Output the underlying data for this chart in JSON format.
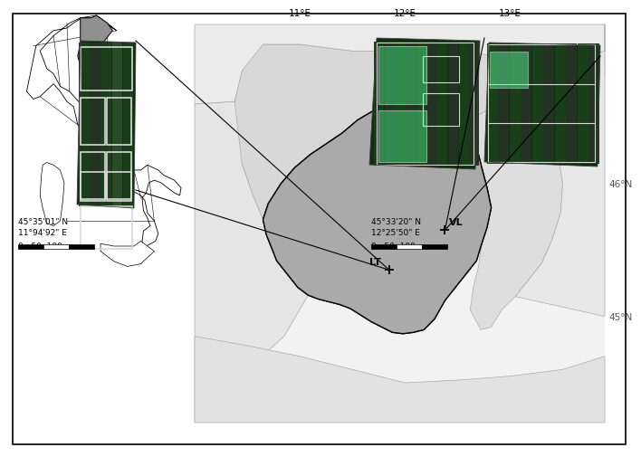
{
  "background_color": "#ffffff",
  "border_color": "#000000",
  "lat_labels": [
    "46°N",
    "45°N"
  ],
  "lon_labels": [
    "11°E",
    "12°E",
    "13°E"
  ],
  "site_LT_label": "LT",
  "site_VL_label": "VL",
  "site_LT_coords_text": "45°35'01\" N\n11°94'92\" E",
  "site_VL_coords_text": "45°33'20\" N\n12°25'50\" E",
  "scale_bar_label": "0   50  100 m",
  "veneto_color": "#aaaaaa",
  "surrounding_color": "#e8e8e8",
  "italy_highlight_color": "#909090",
  "img_dark_green": "#1a3d1a",
  "img_mid_green": "#2a5a2a",
  "img_light_green": "#3d7a3d",
  "img_cyan": "#5affcc",
  "img_white_border": "#e8e8e8"
}
